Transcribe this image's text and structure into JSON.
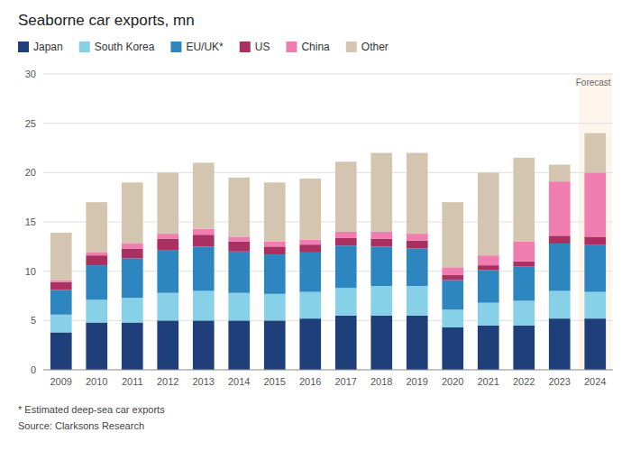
{
  "chart_data": {
    "type": "bar",
    "title": "Seaborne car exports, mn",
    "categories": [
      "2009",
      "2010",
      "2011",
      "2012",
      "2013",
      "2014",
      "2015",
      "2016",
      "2017",
      "2018",
      "2019",
      "2020",
      "2021",
      "2022",
      "2023",
      "2024"
    ],
    "series": [
      {
        "name": "Japan",
        "color": "#1f3f7a",
        "values": [
          3.8,
          4.8,
          4.8,
          5.0,
          5.0,
          5.0,
          5.0,
          5.2,
          5.5,
          5.5,
          5.5,
          4.3,
          4.5,
          4.5,
          5.2,
          5.2
        ]
      },
      {
        "name": "South Korea",
        "color": "#86d0e8",
        "values": [
          1.8,
          2.3,
          2.5,
          2.8,
          3.0,
          2.8,
          2.7,
          2.7,
          2.8,
          3.0,
          3.0,
          1.8,
          2.3,
          2.5,
          2.8,
          2.7
        ]
      },
      {
        "name": "EU/UK*",
        "color": "#2e86c1",
        "values": [
          2.5,
          3.5,
          4.0,
          4.3,
          4.5,
          4.2,
          4.0,
          4.0,
          4.3,
          4.0,
          3.8,
          3.0,
          3.3,
          3.5,
          4.8,
          4.8
        ]
      },
      {
        "name": "US",
        "color": "#a93060",
        "values": [
          0.8,
          1.0,
          1.0,
          1.2,
          1.2,
          1.0,
          0.8,
          0.8,
          0.8,
          0.8,
          0.8,
          0.5,
          0.5,
          0.5,
          0.8,
          0.8
        ]
      },
      {
        "name": "China",
        "color": "#f07db0",
        "values": [
          0.2,
          0.3,
          0.5,
          0.5,
          0.6,
          0.5,
          0.5,
          0.5,
          0.6,
          0.7,
          0.7,
          0.8,
          1.0,
          2.0,
          5.5,
          6.5
        ]
      },
      {
        "name": "Other",
        "color": "#d4c5b0",
        "values": [
          4.8,
          5.1,
          6.2,
          6.2,
          6.7,
          6.0,
          6.0,
          6.2,
          7.1,
          8.0,
          8.2,
          6.6,
          8.4,
          8.5,
          1.7,
          4.0
        ]
      }
    ],
    "stacked": true,
    "ylim": [
      0,
      30
    ],
    "yticks": [
      0,
      5,
      10,
      15,
      20,
      25,
      30
    ],
    "grid": true,
    "legend": "top",
    "annotations": [
      {
        "text": "Forecast",
        "category": "2024",
        "color": "#fdf5ec"
      }
    ],
    "footnotes": [
      "* Estimated deep-sea car exports",
      "Source: Clarksons Research"
    ]
  }
}
